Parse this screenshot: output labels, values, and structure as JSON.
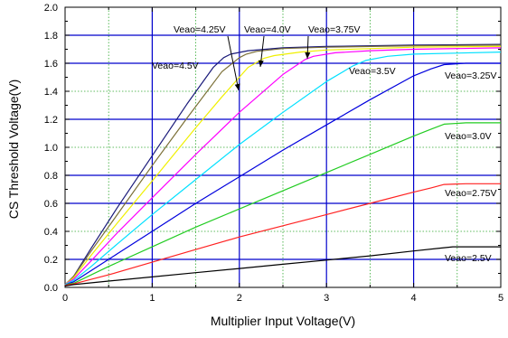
{
  "chart_data": {
    "type": "line",
    "xlabel": "Multiplier Input Voltage(V)",
    "ylabel": "CS Threshold Voltage(V)",
    "xlim": [
      0,
      5
    ],
    "ylim": [
      0,
      2.0
    ],
    "x_ticks": [
      "0",
      "1",
      "2",
      "3",
      "4",
      "5"
    ],
    "y_ticks": [
      "0.0",
      "0.2",
      "0.4",
      "0.6",
      "0.8",
      "1.0",
      "1.2",
      "1.4",
      "1.6",
      "1.8",
      "2.0"
    ],
    "grid": {
      "major_x": [
        1,
        2,
        3,
        4
      ],
      "major_y": [
        0.2,
        0.6,
        0.8,
        1.2,
        1.6,
        1.8
      ],
      "minor_x": [
        0.5,
        1.5,
        2.5,
        3.5,
        4.5
      ],
      "minor_y": [
        0.4,
        1.0,
        1.4
      ]
    },
    "colors": {
      "major_grid": "#0000cc",
      "minor_grid": "#2fa82f",
      "axis": "#000000"
    },
    "series": [
      {
        "name": "Veao=4.5V",
        "color": "#1a1a7a",
        "x": [
          0,
          0.05,
          0.1,
          0.3,
          0.6,
          1.0,
          1.4,
          1.7,
          1.82,
          1.9,
          2.1,
          2.5,
          3.0,
          4.0,
          5.0
        ],
        "y": [
          0.02,
          0.05,
          0.08,
          0.28,
          0.57,
          0.94,
          1.31,
          1.57,
          1.64,
          1.665,
          1.69,
          1.71,
          1.72,
          1.73,
          1.735
        ]
      },
      {
        "name": "Veao=4.25V",
        "color": "#7a6e35",
        "x": [
          0,
          0.05,
          0.1,
          0.3,
          0.6,
          1.0,
          1.4,
          1.8,
          2.0,
          2.08,
          2.2,
          2.5,
          3.0,
          4.0,
          5.0
        ],
        "y": [
          0.02,
          0.05,
          0.08,
          0.26,
          0.52,
          0.87,
          1.21,
          1.54,
          1.64,
          1.665,
          1.685,
          1.705,
          1.715,
          1.725,
          1.73
        ]
      },
      {
        "name": "Veao=4.0V",
        "color": "#f0f000",
        "x": [
          0,
          0.05,
          0.1,
          0.3,
          0.6,
          1.0,
          1.5,
          1.8,
          2.1,
          2.28,
          2.4,
          2.7,
          3.0,
          4.0,
          5.0
        ],
        "y": [
          0.02,
          0.045,
          0.07,
          0.23,
          0.46,
          0.76,
          1.14,
          1.36,
          1.57,
          1.635,
          1.655,
          1.68,
          1.695,
          1.715,
          1.72
        ]
      },
      {
        "name": "Veao=3.75V",
        "color": "#ff00ff",
        "x": [
          0,
          0.05,
          0.1,
          0.3,
          0.6,
          1.0,
          1.5,
          2.0,
          2.5,
          2.75,
          2.85,
          3.1,
          3.5,
          4.0,
          5.0
        ],
        "y": [
          0.02,
          0.04,
          0.06,
          0.19,
          0.39,
          0.64,
          0.95,
          1.25,
          1.52,
          1.625,
          1.65,
          1.675,
          1.69,
          1.7,
          1.71
        ]
      },
      {
        "name": "Veao=3.5V",
        "color": "#00e0ff",
        "x": [
          0,
          0.05,
          0.1,
          0.3,
          0.6,
          1.0,
          1.5,
          2.0,
          2.5,
          3.0,
          3.3,
          3.45,
          3.7,
          4.0,
          5.0
        ],
        "y": [
          0.02,
          0.035,
          0.05,
          0.15,
          0.31,
          0.52,
          0.77,
          1.02,
          1.25,
          1.47,
          1.58,
          1.62,
          1.65,
          1.665,
          1.68
        ]
      },
      {
        "name": "Veao=3.25V",
        "color": "#0000dd",
        "x": [
          0,
          0.05,
          0.1,
          0.3,
          0.6,
          1.0,
          1.5,
          2.0,
          2.5,
          3.0,
          3.5,
          4.0,
          4.2,
          4.35,
          4.6,
          5.0
        ],
        "y": [
          0.015,
          0.03,
          0.04,
          0.12,
          0.24,
          0.4,
          0.6,
          0.79,
          0.98,
          1.16,
          1.34,
          1.51,
          1.56,
          1.59,
          1.6,
          1.6
        ]
      },
      {
        "name": "Veao=3.0V",
        "color": "#22cc22",
        "x": [
          0,
          0.05,
          0.1,
          0.5,
          1.0,
          1.5,
          2.0,
          2.5,
          3.0,
          3.5,
          4.0,
          4.2,
          4.35,
          4.6,
          5.0
        ],
        "y": [
          0.015,
          0.025,
          0.03,
          0.15,
          0.29,
          0.43,
          0.56,
          0.69,
          0.82,
          0.95,
          1.08,
          1.13,
          1.165,
          1.175,
          1.175
        ]
      },
      {
        "name": "Veao=2.75V",
        "color": "#ff2222",
        "x": [
          0,
          0.05,
          0.1,
          0.5,
          1.0,
          1.5,
          2.0,
          2.5,
          3.0,
          3.5,
          4.0,
          4.2,
          4.35,
          4.6,
          5.0
        ],
        "y": [
          0.015,
          0.02,
          0.025,
          0.09,
          0.18,
          0.27,
          0.36,
          0.44,
          0.52,
          0.6,
          0.68,
          0.71,
          0.735,
          0.74,
          0.74
        ]
      },
      {
        "name": "Veao=2.5V",
        "color": "#000000",
        "x": [
          0,
          0.05,
          0.1,
          0.5,
          1.0,
          1.5,
          2.0,
          2.5,
          3.0,
          3.5,
          4.0,
          4.3,
          4.45,
          4.7,
          5.0
        ],
        "y": [
          0.01,
          0.015,
          0.02,
          0.045,
          0.075,
          0.105,
          0.135,
          0.165,
          0.195,
          0.225,
          0.26,
          0.28,
          0.29,
          0.29,
          0.29
        ]
      }
    ],
    "annotations": [
      {
        "text": "Veao=4.5V"
      },
      {
        "text": "Veao=4.25V"
      },
      {
        "text": "Veao=4.0V"
      },
      {
        "text": "Veao=3.75V"
      },
      {
        "text": "Veao=3.5V"
      },
      {
        "text": "Veao=3.25V"
      },
      {
        "text": "Veao=3.0V"
      },
      {
        "text": "Veao=2.75V"
      },
      {
        "text": "Veao=2.5V"
      }
    ]
  }
}
